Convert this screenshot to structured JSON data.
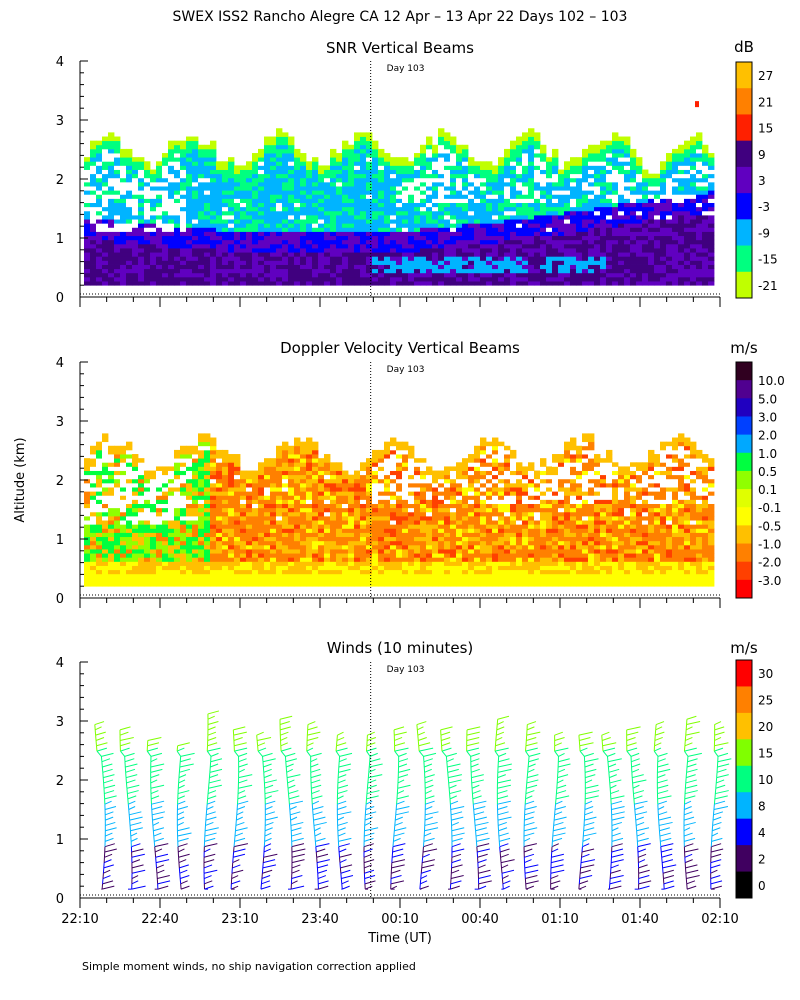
{
  "figure_title": "SWEX ISS2 Rancho Alegre CA  12 Apr – 13 Apr 22 Days 102 – 103",
  "footnote": "Simple moment winds, no ship navigation correction applied",
  "shared_axes": {
    "ylabel": "Altitude (km)",
    "xlabel": "Time (UT)",
    "yticks": [
      "0",
      "1",
      "2",
      "3",
      "4"
    ],
    "xticks": [
      "22:10",
      "22:40",
      "23:10",
      "23:40",
      "00:10",
      "00:40",
      "01:10",
      "01:40",
      "02:10"
    ],
    "day_marker": "Day 103"
  },
  "chart_data": [
    {
      "type": "heatmap",
      "title": "SNR Vertical Beams",
      "xlabel": "",
      "ylabel": "Altitude (km)",
      "x_range": [
        "22:10",
        "02:10"
      ],
      "ylim": [
        0,
        4
      ],
      "day_marker_time": "23:59",
      "colorbar": {
        "unit": "dB",
        "labels": [
          "27",
          "21",
          "15",
          "9",
          "3",
          "-3",
          "-9",
          "-15",
          "-21"
        ],
        "colors": [
          "#ffc000",
          "#ff8000",
          "#ff2000",
          "#40007f",
          "#6000c0",
          "#0000ff",
          "#00b4ff",
          "#00ff80",
          "#c0ff00"
        ]
      }
    },
    {
      "type": "heatmap",
      "title": "Doppler Velocity Vertical Beams",
      "xlabel": "",
      "ylabel": "Altitude (km)",
      "x_range": [
        "22:10",
        "02:10"
      ],
      "ylim": [
        0,
        4
      ],
      "day_marker_time": "23:59",
      "colorbar": {
        "unit": "m/s",
        "labels": [
          "10.0",
          "5.0",
          "3.0",
          "2.0",
          "1.0",
          "0.5",
          "0.1",
          "-0.1",
          "-0.5",
          "-1.0",
          "-2.0",
          "-3.0"
        ],
        "colors": [
          "#300020",
          "#500090",
          "#2000c0",
          "#0040ff",
          "#00a8ff",
          "#00ff40",
          "#90ff00",
          "#e0ff00",
          "#ffff00",
          "#ffc000",
          "#ff8000",
          "#ff4000",
          "#ff0000"
        ]
      }
    },
    {
      "type": "scatter",
      "title": "Winds (10 minutes)",
      "xlabel": "Time (UT)",
      "ylabel": "Altitude (km)",
      "x_range": [
        "22:10",
        "02:10"
      ],
      "ylim": [
        0,
        4
      ],
      "day_marker_time": "23:59",
      "colorbar": {
        "unit": "m/s",
        "labels": [
          "30",
          "25",
          "20",
          "15",
          "10",
          "8",
          "4",
          "2",
          "0"
        ],
        "colors": [
          "#ff0000",
          "#ff8000",
          "#ffc000",
          "#80ff00",
          "#00ff80",
          "#00b4ff",
          "#0000ff",
          "#400060",
          "#000000"
        ]
      }
    }
  ]
}
